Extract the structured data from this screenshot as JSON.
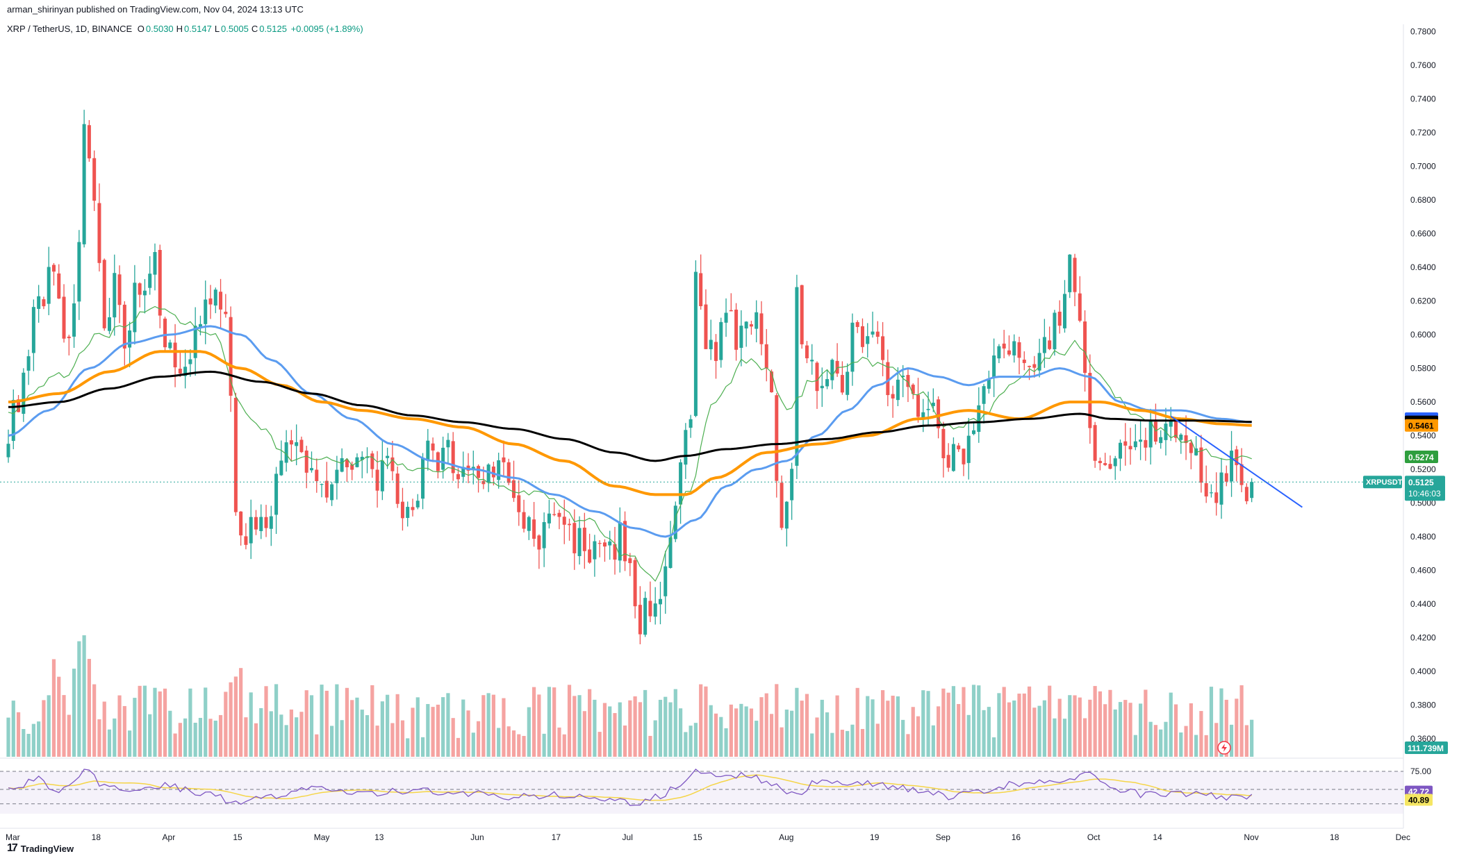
{
  "header": {
    "publisher": "arman_shirinyan published on TradingView.com, Nov 04, 2024 13:13 UTC",
    "symbol": "XRP / TetherUS, 1D, BINANCE",
    "ohlc": [
      {
        "k": "O",
        "v": "0.5030"
      },
      {
        "k": "H",
        "v": "0.5147"
      },
      {
        "k": "L",
        "v": "0.5005"
      },
      {
        "k": "C",
        "v": "0.5125"
      }
    ],
    "change": "+0.0095 (+1.89%)"
  },
  "footer": {
    "brand": "TradingView",
    "logo_icon": "tradingview-logo-icon"
  },
  "colors": {
    "up": "#26a69a",
    "down": "#ef5350",
    "vol_up": "#8fd0c8",
    "vol_down": "#f5a3a1",
    "ma_fast": "#4caf50",
    "ma_blue": "#5b9cf0",
    "ma_orange": "#ff9800",
    "ma_black": "#000000",
    "trendline": "#2962ff",
    "rsi": "#7e57c2",
    "rsi_ma": "#f5d547"
  },
  "chart_data": {
    "type": "candlestick",
    "ylim": [
      0.35,
      0.785
    ],
    "yticks": [
      "0.7800",
      "0.7600",
      "0.7400",
      "0.7200",
      "0.7000",
      "0.6800",
      "0.6600",
      "0.6400",
      "0.6200",
      "0.6000",
      "0.5800",
      "0.5600",
      "0.5400",
      "0.5200",
      "0.5000",
      "0.4800",
      "0.4600",
      "0.4400",
      "0.4200",
      "0.4000",
      "0.3800",
      "0.3600"
    ],
    "xticks": [
      {
        "label": "Mar",
        "day": 0
      },
      {
        "label": "18",
        "day": 17
      },
      {
        "label": "Apr",
        "day": 31
      },
      {
        "label": "15",
        "day": 45
      },
      {
        "label": "May",
        "day": 61
      },
      {
        "label": "13",
        "day": 73
      },
      {
        "label": "Jun",
        "day": 92
      },
      {
        "label": "17",
        "day": 108
      },
      {
        "label": "Jul",
        "day": 122
      },
      {
        "label": "15",
        "day": 136
      },
      {
        "label": "Aug",
        "day": 153
      },
      {
        "label": "19",
        "day": 171
      },
      {
        "label": "Sep",
        "day": 184
      },
      {
        "label": "16",
        "day": 199
      },
      {
        "label": "Oct",
        "day": 214
      },
      {
        "label": "14",
        "day": 227
      },
      {
        "label": "Nov",
        "day": 245
      },
      {
        "label": "18",
        "day": 262
      },
      {
        "label": "Dec",
        "day": 275
      }
    ],
    "close_anchors": [
      [
        0,
        0.545
      ],
      [
        3,
        0.57
      ],
      [
        6,
        0.62
      ],
      [
        9,
        0.64
      ],
      [
        12,
        0.59
      ],
      [
        14,
        0.66
      ],
      [
        15,
        0.72
      ],
      [
        17,
        0.67
      ],
      [
        19,
        0.6
      ],
      [
        21,
        0.64
      ],
      [
        23,
        0.59
      ],
      [
        25,
        0.63
      ],
      [
        27,
        0.62
      ],
      [
        29,
        0.64
      ],
      [
        31,
        0.6
      ],
      [
        33,
        0.58
      ],
      [
        36,
        0.59
      ],
      [
        38,
        0.61
      ],
      [
        41,
        0.62
      ],
      [
        43,
        0.61
      ],
      [
        45,
        0.5
      ],
      [
        47,
        0.48
      ],
      [
        49,
        0.49
      ],
      [
        51,
        0.49
      ],
      [
        53,
        0.51
      ],
      [
        55,
        0.54
      ],
      [
        57,
        0.53
      ],
      [
        59,
        0.52
      ],
      [
        61,
        0.515
      ],
      [
        63,
        0.51
      ],
      [
        65,
        0.52
      ],
      [
        67,
        0.53
      ],
      [
        69,
        0.525
      ],
      [
        71,
        0.52
      ],
      [
        73,
        0.515
      ],
      [
        75,
        0.52
      ],
      [
        77,
        0.5
      ],
      [
        79,
        0.49
      ],
      [
        81,
        0.51
      ],
      [
        83,
        0.53
      ],
      [
        85,
        0.52
      ],
      [
        87,
        0.53
      ],
      [
        89,
        0.52
      ],
      [
        91,
        0.52
      ],
      [
        93,
        0.515
      ],
      [
        95,
        0.52
      ],
      [
        97,
        0.525
      ],
      [
        99,
        0.51
      ],
      [
        101,
        0.49
      ],
      [
        103,
        0.485
      ],
      [
        105,
        0.475
      ],
      [
        107,
        0.49
      ],
      [
        109,
        0.495
      ],
      [
        111,
        0.48
      ],
      [
        113,
        0.48
      ],
      [
        115,
        0.47
      ],
      [
        117,
        0.47
      ],
      [
        119,
        0.47
      ],
      [
        121,
        0.48
      ],
      [
        123,
        0.46
      ],
      [
        124,
        0.44
      ],
      [
        125,
        0.43
      ],
      [
        127,
        0.44
      ],
      [
        129,
        0.45
      ],
      [
        131,
        0.47
      ],
      [
        133,
        0.52
      ],
      [
        135,
        0.55
      ],
      [
        136,
        0.63
      ],
      [
        138,
        0.6
      ],
      [
        140,
        0.59
      ],
      [
        142,
        0.61
      ],
      [
        144,
        0.6
      ],
      [
        146,
        0.6
      ],
      [
        148,
        0.62
      ],
      [
        150,
        0.58
      ],
      [
        151,
        0.56
      ],
      [
        152,
        0.52
      ],
      [
        153,
        0.49
      ],
      [
        155,
        0.53
      ],
      [
        156,
        0.62
      ],
      [
        157,
        0.6
      ],
      [
        159,
        0.58
      ],
      [
        161,
        0.57
      ],
      [
        163,
        0.58
      ],
      [
        165,
        0.575
      ],
      [
        167,
        0.6
      ],
      [
        169,
        0.6
      ],
      [
        171,
        0.61
      ],
      [
        172,
        0.6
      ],
      [
        174,
        0.56
      ],
      [
        176,
        0.57
      ],
      [
        178,
        0.57
      ],
      [
        180,
        0.56
      ],
      [
        182,
        0.565
      ],
      [
        184,
        0.545
      ],
      [
        186,
        0.525
      ],
      [
        188,
        0.53
      ],
      [
        190,
        0.535
      ],
      [
        192,
        0.56
      ],
      [
        194,
        0.58
      ],
      [
        196,
        0.59
      ],
      [
        198,
        0.59
      ],
      [
        200,
        0.585
      ],
      [
        202,
        0.59
      ],
      [
        204,
        0.59
      ],
      [
        206,
        0.6
      ],
      [
        208,
        0.61
      ],
      [
        210,
        0.64
      ],
      [
        212,
        0.6
      ],
      [
        214,
        0.54
      ],
      [
        216,
        0.52
      ],
      [
        218,
        0.53
      ],
      [
        220,
        0.53
      ],
      [
        222,
        0.535
      ],
      [
        224,
        0.54
      ],
      [
        226,
        0.545
      ],
      [
        228,
        0.545
      ],
      [
        230,
        0.55
      ],
      [
        232,
        0.545
      ],
      [
        234,
        0.53
      ],
      [
        236,
        0.52
      ],
      [
        238,
        0.5
      ],
      [
        240,
        0.52
      ],
      [
        242,
        0.525
      ],
      [
        244,
        0.515
      ],
      [
        245,
        0.505
      ],
      [
        246,
        0.5125
      ]
    ],
    "ma_series": [
      {
        "id": "fast",
        "anchors": [
          [
            0,
            0.555
          ],
          [
            10,
            0.575
          ],
          [
            18,
            0.6
          ],
          [
            30,
            0.615
          ],
          [
            40,
            0.6
          ],
          [
            48,
            0.55
          ],
          [
            56,
            0.525
          ],
          [
            64,
            0.525
          ],
          [
            72,
            0.525
          ],
          [
            84,
            0.52
          ],
          [
            94,
            0.515
          ],
          [
            104,
            0.505
          ],
          [
            114,
            0.49
          ],
          [
            122,
            0.47
          ],
          [
            128,
            0.455
          ],
          [
            134,
            0.505
          ],
          [
            140,
            0.56
          ],
          [
            146,
            0.585
          ],
          [
            150,
            0.58
          ],
          [
            154,
            0.555
          ],
          [
            160,
            0.575
          ],
          [
            168,
            0.585
          ],
          [
            174,
            0.58
          ],
          [
            180,
            0.565
          ],
          [
            186,
            0.545
          ],
          [
            192,
            0.55
          ],
          [
            200,
            0.575
          ],
          [
            208,
            0.59
          ],
          [
            212,
            0.595
          ],
          [
            216,
            0.575
          ],
          [
            222,
            0.555
          ],
          [
            230,
            0.54
          ],
          [
            238,
            0.53
          ],
          [
            246,
            0.525
          ]
        ]
      },
      {
        "id": "blue",
        "anchors": [
          [
            0,
            0.54
          ],
          [
            8,
            0.555
          ],
          [
            16,
            0.58
          ],
          [
            24,
            0.595
          ],
          [
            32,
            0.6
          ],
          [
            40,
            0.605
          ],
          [
            46,
            0.6
          ],
          [
            52,
            0.585
          ],
          [
            60,
            0.565
          ],
          [
            68,
            0.55
          ],
          [
            76,
            0.535
          ],
          [
            84,
            0.525
          ],
          [
            92,
            0.52
          ],
          [
            100,
            0.515
          ],
          [
            108,
            0.505
          ],
          [
            116,
            0.495
          ],
          [
            124,
            0.485
          ],
          [
            130,
            0.48
          ],
          [
            136,
            0.49
          ],
          [
            142,
            0.51
          ],
          [
            148,
            0.52
          ],
          [
            154,
            0.525
          ],
          [
            160,
            0.54
          ],
          [
            166,
            0.555
          ],
          [
            172,
            0.57
          ],
          [
            178,
            0.58
          ],
          [
            184,
            0.575
          ],
          [
            190,
            0.57
          ],
          [
            196,
            0.575
          ],
          [
            202,
            0.575
          ],
          [
            208,
            0.58
          ],
          [
            214,
            0.575
          ],
          [
            220,
            0.56
          ],
          [
            226,
            0.555
          ],
          [
            232,
            0.555
          ],
          [
            240,
            0.55
          ],
          [
            246,
            0.548
          ]
        ]
      },
      {
        "id": "orange",
        "anchors": [
          [
            0,
            0.56
          ],
          [
            10,
            0.565
          ],
          [
            20,
            0.578
          ],
          [
            30,
            0.59
          ],
          [
            38,
            0.59
          ],
          [
            46,
            0.58
          ],
          [
            54,
            0.57
          ],
          [
            62,
            0.56
          ],
          [
            70,
            0.555
          ],
          [
            80,
            0.55
          ],
          [
            90,
            0.545
          ],
          [
            100,
            0.535
          ],
          [
            110,
            0.525
          ],
          [
            120,
            0.51
          ],
          [
            128,
            0.505
          ],
          [
            134,
            0.505
          ],
          [
            140,
            0.515
          ],
          [
            150,
            0.53
          ],
          [
            160,
            0.535
          ],
          [
            170,
            0.54
          ],
          [
            180,
            0.55
          ],
          [
            190,
            0.555
          ],
          [
            200,
            0.55
          ],
          [
            210,
            0.56
          ],
          [
            216,
            0.56
          ],
          [
            224,
            0.555
          ],
          [
            232,
            0.55
          ],
          [
            240,
            0.547
          ],
          [
            246,
            0.5461
          ]
        ]
      },
      {
        "id": "black",
        "anchors": [
          [
            0,
            0.557
          ],
          [
            10,
            0.56
          ],
          [
            20,
            0.568
          ],
          [
            30,
            0.575
          ],
          [
            40,
            0.578
          ],
          [
            50,
            0.572
          ],
          [
            60,
            0.565
          ],
          [
            70,
            0.558
          ],
          [
            80,
            0.552
          ],
          [
            90,
            0.548
          ],
          [
            100,
            0.544
          ],
          [
            110,
            0.538
          ],
          [
            120,
            0.53
          ],
          [
            128,
            0.525
          ],
          [
            134,
            0.528
          ],
          [
            142,
            0.532
          ],
          [
            152,
            0.535
          ],
          [
            162,
            0.538
          ],
          [
            172,
            0.542
          ],
          [
            182,
            0.546
          ],
          [
            192,
            0.548
          ],
          [
            202,
            0.55
          ],
          [
            212,
            0.553
          ],
          [
            218,
            0.55
          ],
          [
            226,
            0.549
          ],
          [
            236,
            0.549
          ],
          [
            246,
            0.5482
          ]
        ]
      }
    ],
    "trendline": [
      [
        230,
        0.5515
      ],
      [
        256,
        0.4975
      ]
    ],
    "volume_peaks": [
      [
        15,
        0.55
      ],
      [
        9,
        0.35
      ],
      [
        45,
        0.28
      ],
      [
        124,
        0.22
      ],
      [
        156,
        0.28
      ],
      [
        214,
        0.15
      ]
    ],
    "rsi": {
      "levels": [
        "75.00",
        "50.00"
      ],
      "anchors": [
        [
          0,
          50
        ],
        [
          6,
          65
        ],
        [
          10,
          45
        ],
        [
          15,
          75
        ],
        [
          20,
          50
        ],
        [
          30,
          55
        ],
        [
          40,
          45
        ],
        [
          45,
          30
        ],
        [
          52,
          40
        ],
        [
          60,
          50
        ],
        [
          70,
          45
        ],
        [
          80,
          48
        ],
        [
          90,
          45
        ],
        [
          100,
          40
        ],
        [
          110,
          42
        ],
        [
          120,
          38
        ],
        [
          124,
          30
        ],
        [
          128,
          40
        ],
        [
          134,
          60
        ],
        [
          136,
          78
        ],
        [
          142,
          65
        ],
        [
          146,
          70
        ],
        [
          152,
          55
        ],
        [
          156,
          40
        ],
        [
          160,
          62
        ],
        [
          170,
          58
        ],
        [
          180,
          50
        ],
        [
          186,
          40
        ],
        [
          190,
          45
        ],
        [
          200,
          58
        ],
        [
          210,
          62
        ],
        [
          214,
          72
        ],
        [
          218,
          50
        ],
        [
          226,
          42
        ],
        [
          236,
          45
        ],
        [
          240,
          38
        ],
        [
          246,
          42
        ]
      ]
    },
    "price_labels": [
      {
        "text": "0.5501",
        "value": 0.5501,
        "color": "#2962ff",
        "text_color": "#ffffff"
      },
      {
        "text": "0.5482",
        "value": 0.5482,
        "color": "#000000",
        "text_color": "#ffffff"
      },
      {
        "text": "0.5461",
        "value": 0.5461,
        "color": "#ff9800",
        "text_color": "#000000"
      },
      {
        "text": "0.5274",
        "value": 0.5274,
        "color": "#2e9e3e",
        "text_color": "#ffffff"
      }
    ],
    "current_label": {
      "symbol": "XRPUSDT",
      "price": "0.5125",
      "countdown": "10:46:03",
      "value": 0.5125
    },
    "volume_label": "111.739M",
    "rsi_labels": [
      {
        "text": "42.72",
        "value": 42.72,
        "color": "#7e57c2",
        "text_color": "#ffffff"
      },
      {
        "text": "40.89",
        "value": 40.89,
        "color": "#f5e663",
        "text_color": "#000000"
      }
    ]
  }
}
